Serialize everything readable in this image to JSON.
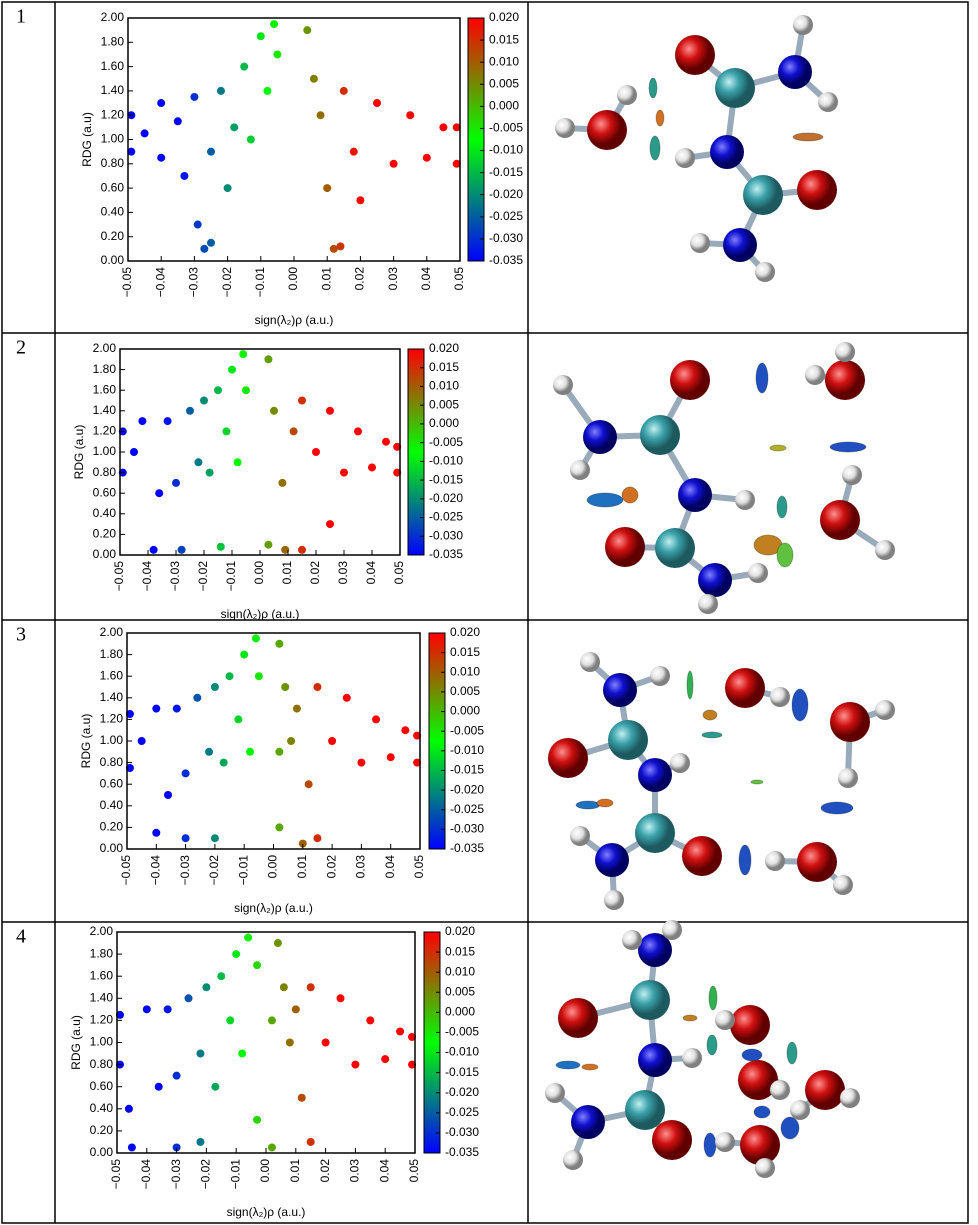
{
  "panels": [
    "1",
    "2",
    "3",
    "4"
  ],
  "chart_data": [
    {
      "type": "scatter",
      "xlabel": "sign(λ₂)ρ (a.u.)",
      "ylabel": "RDG (a.u)",
      "x": [
        -0.049,
        -0.049,
        -0.045,
        -0.04,
        -0.04,
        -0.035,
        -0.033,
        -0.03,
        -0.029,
        -0.027,
        -0.025,
        -0.025,
        -0.022,
        -0.02,
        -0.018,
        -0.015,
        -0.013,
        -0.01,
        -0.008,
        -0.006,
        -0.005,
        0.004,
        0.006,
        0.008,
        0.01,
        0.012,
        0.014,
        0.015,
        0.018,
        0.02,
        0.025,
        0.03,
        0.035,
        0.04,
        0.045,
        0.049,
        0.049
      ],
      "y": [
        1.2,
        0.9,
        1.05,
        1.3,
        0.85,
        1.15,
        0.7,
        1.35,
        0.3,
        0.1,
        0.15,
        0.9,
        1.4,
        0.6,
        1.1,
        1.6,
        1.0,
        1.85,
        1.4,
        1.95,
        1.7,
        1.9,
        1.5,
        1.2,
        0.6,
        0.1,
        0.12,
        1.4,
        0.9,
        0.5,
        1.3,
        0.8,
        1.2,
        0.85,
        1.1,
        0.8,
        1.1
      ],
      "xlim": [
        -0.05,
        0.05
      ],
      "ylim": [
        0,
        2
      ],
      "xticks": [
        {
          "value": -0.05,
          "label": "−0.05"
        },
        {
          "value": -0.04,
          "label": "−0.04"
        },
        {
          "value": -0.03,
          "label": "−0.03"
        },
        {
          "value": -0.02,
          "label": "−0.02"
        },
        {
          "value": -0.01,
          "label": "−0.01"
        },
        {
          "value": 0,
          "label": "0.00"
        },
        0.01,
        0.02,
        0.03,
        0.04,
        0.05
      ],
      "yticks": [
        {
          "value": 0,
          "label": "0.00"
        },
        {
          "value": 0.2,
          "label": "0.20"
        },
        {
          "value": 0.4,
          "label": "0.40"
        },
        {
          "value": 0.6,
          "label": "0.60"
        },
        {
          "value": 0.8,
          "label": "0.80"
        },
        {
          "value": 1,
          "label": "1.00"
        },
        {
          "value": 1.2,
          "label": "1.20"
        },
        {
          "value": 1.4,
          "label": "1.40"
        },
        {
          "value": 1.6,
          "label": "1.60"
        },
        {
          "value": 1.8,
          "label": "1.80"
        },
        {
          "value": 2,
          "label": "2.00"
        }
      ],
      "colorbar": {
        "lim": [
          -0.035,
          0.02
        ],
        "colors": [
          "#0000ff",
          "#00ff00",
          "#ff0000"
        ],
        "ticks": [
          {
            "value": 0.02,
            "label": "0.020"
          },
          0.015,
          {
            "value": 0.01,
            "label": "0.010"
          },
          0.005,
          {
            "value": 0,
            "label": "0.000"
          },
          -0.005,
          {
            "value": -0.01,
            "label": "-0.010"
          },
          -0.015,
          {
            "value": -0.02,
            "label": "-0.020"
          },
          -0.025,
          {
            "value": -0.03,
            "label": "-0.030"
          },
          -0.035
        ]
      }
    },
    {
      "type": "scatter",
      "xlabel": "sign(λ₂)ρ (a.u.)",
      "ylabel": "RDG (a.u)",
      "x": [
        -0.049,
        -0.049,
        -0.045,
        -0.042,
        -0.038,
        -0.036,
        -0.033,
        -0.03,
        -0.028,
        -0.025,
        -0.022,
        -0.02,
        -0.018,
        -0.015,
        -0.014,
        -0.012,
        -0.01,
        -0.008,
        -0.006,
        -0.005,
        0.003,
        0.003,
        0.005,
        0.008,
        0.009,
        0.012,
        0.015,
        0.015,
        0.02,
        0.025,
        0.025,
        0.03,
        0.035,
        0.04,
        0.045,
        0.049,
        0.049
      ],
      "y": [
        1.2,
        0.8,
        1.0,
        1.3,
        0.05,
        0.6,
        1.3,
        0.7,
        0.05,
        1.4,
        0.9,
        1.5,
        0.8,
        1.6,
        0.08,
        1.2,
        1.8,
        0.9,
        1.95,
        1.6,
        0.1,
        1.9,
        1.4,
        0.7,
        0.05,
        1.2,
        0.05,
        1.5,
        1.0,
        0.3,
        1.4,
        0.8,
        1.2,
        0.85,
        1.1,
        0.8,
        1.05
      ],
      "xlim": [
        -0.05,
        0.05
      ],
      "ylim": [
        0,
        2
      ],
      "xticks": [
        {
          "value": -0.05,
          "label": "−0.05"
        },
        {
          "value": -0.04,
          "label": "−0.04"
        },
        {
          "value": -0.03,
          "label": "−0.03"
        },
        {
          "value": -0.02,
          "label": "−0.02"
        },
        {
          "value": -0.01,
          "label": "−0.01"
        },
        {
          "value": 0,
          "label": "0.00"
        },
        0.01,
        0.02,
        0.03,
        0.04,
        0.05
      ],
      "yticks": [
        {
          "value": 0,
          "label": "0.00"
        },
        {
          "value": 0.2,
          "label": "0.20"
        },
        {
          "value": 0.4,
          "label": "0.40"
        },
        {
          "value": 0.6,
          "label": "0.60"
        },
        {
          "value": 0.8,
          "label": "0.80"
        },
        {
          "value": 1,
          "label": "1.00"
        },
        {
          "value": 1.2,
          "label": "1.20"
        },
        {
          "value": 1.4,
          "label": "1.40"
        },
        {
          "value": 1.6,
          "label": "1.60"
        },
        {
          "value": 1.8,
          "label": "1.80"
        },
        {
          "value": 2,
          "label": "2.00"
        }
      ],
      "colorbar": {
        "lim": [
          -0.035,
          0.02
        ],
        "colors": [
          "#0000ff",
          "#00ff00",
          "#ff0000"
        ],
        "ticks": [
          {
            "value": 0.02,
            "label": "0.020"
          },
          0.015,
          {
            "value": 0.01,
            "label": "0.010"
          },
          0.005,
          {
            "value": 0,
            "label": "0.000"
          },
          -0.005,
          {
            "value": -0.01,
            "label": "-0.010"
          },
          -0.015,
          {
            "value": -0.02,
            "label": "-0.020"
          },
          -0.025,
          {
            "value": -0.03,
            "label": "-0.030"
          },
          -0.035
        ]
      }
    },
    {
      "type": "scatter",
      "xlabel": "sign(λ₂)ρ (a.u.)",
      "ylabel": "RDG (a.u)",
      "x": [
        -0.049,
        -0.049,
        -0.045,
        -0.04,
        -0.04,
        -0.036,
        -0.033,
        -0.03,
        -0.03,
        -0.026,
        -0.022,
        -0.02,
        -0.02,
        -0.017,
        -0.015,
        -0.012,
        -0.01,
        -0.008,
        -0.006,
        -0.005,
        0.002,
        0.002,
        0.002,
        0.004,
        0.006,
        0.008,
        0.01,
        0.012,
        0.015,
        0.015,
        0.02,
        0.025,
        0.03,
        0.035,
        0.04,
        0.045,
        0.049,
        0.049
      ],
      "y": [
        1.25,
        0.75,
        1.0,
        1.3,
        0.15,
        0.5,
        1.3,
        0.7,
        0.1,
        1.4,
        0.9,
        1.5,
        0.1,
        0.8,
        1.6,
        1.2,
        1.8,
        0.9,
        1.95,
        1.6,
        0.2,
        0.9,
        1.9,
        1.5,
        1.0,
        1.3,
        0.05,
        0.6,
        0.1,
        1.5,
        1.0,
        1.4,
        0.8,
        1.2,
        0.85,
        1.1,
        0.8,
        1.05
      ],
      "xlim": [
        -0.05,
        0.05
      ],
      "ylim": [
        0,
        2
      ],
      "xticks": [
        {
          "value": -0.05,
          "label": "−0.05"
        },
        {
          "value": -0.04,
          "label": "−0.04"
        },
        {
          "value": -0.03,
          "label": "−0.03"
        },
        {
          "value": -0.02,
          "label": "−0.02"
        },
        {
          "value": -0.01,
          "label": "−0.01"
        },
        {
          "value": 0,
          "label": "0.00"
        },
        0.01,
        0.02,
        0.03,
        0.04,
        0.05
      ],
      "yticks": [
        {
          "value": 0,
          "label": "0.00"
        },
        {
          "value": 0.2,
          "label": "0.20"
        },
        {
          "value": 0.4,
          "label": "0.40"
        },
        {
          "value": 0.6,
          "label": "0.60"
        },
        {
          "value": 0.8,
          "label": "0.80"
        },
        {
          "value": 1,
          "label": "1.00"
        },
        {
          "value": 1.2,
          "label": "1.20"
        },
        {
          "value": 1.4,
          "label": "1.40"
        },
        {
          "value": 1.6,
          "label": "1.60"
        },
        {
          "value": 1.8,
          "label": "1.80"
        },
        {
          "value": 2,
          "label": "2.00"
        }
      ],
      "colorbar": {
        "lim": [
          -0.035,
          0.02
        ],
        "colors": [
          "#0000ff",
          "#00ff00",
          "#ff0000"
        ],
        "ticks": [
          {
            "value": 0.02,
            "label": "0.020"
          },
          0.015,
          {
            "value": 0.01,
            "label": "0.010"
          },
          0.005,
          {
            "value": 0,
            "label": "0.000"
          },
          -0.005,
          {
            "value": -0.01,
            "label": "-0.010"
          },
          -0.015,
          {
            "value": -0.02,
            "label": "-0.020"
          },
          -0.025,
          {
            "value": -0.03,
            "label": "-0.030"
          },
          -0.035
        ]
      }
    },
    {
      "type": "scatter",
      "xlabel": "sign(λ₂)ρ (a.u.)",
      "ylabel": "RDG (a.u)",
      "x": [
        -0.049,
        -0.049,
        -0.046,
        -0.045,
        -0.04,
        -0.036,
        -0.033,
        -0.03,
        -0.03,
        -0.026,
        -0.022,
        -0.022,
        -0.02,
        -0.017,
        -0.015,
        -0.012,
        -0.01,
        -0.008,
        -0.006,
        -0.003,
        -0.003,
        0.002,
        0.002,
        0.004,
        0.006,
        0.008,
        0.01,
        0.012,
        0.015,
        0.015,
        0.02,
        0.025,
        0.03,
        0.035,
        0.04,
        0.045,
        0.049,
        0.049
      ],
      "y": [
        1.25,
        0.8,
        0.4,
        0.05,
        1.3,
        0.6,
        1.3,
        0.7,
        0.05,
        1.4,
        0.9,
        0.1,
        1.5,
        0.6,
        1.6,
        1.2,
        1.8,
        0.9,
        1.95,
        0.3,
        1.7,
        0.05,
        1.2,
        1.9,
        1.5,
        1.0,
        1.3,
        0.5,
        0.1,
        1.5,
        1.0,
        1.4,
        0.8,
        1.2,
        0.85,
        1.1,
        0.8,
        1.05
      ],
      "xlim": [
        -0.05,
        0.05
      ],
      "ylim": [
        0,
        2
      ],
      "xticks": [
        {
          "value": -0.05,
          "label": "−0.05"
        },
        {
          "value": -0.04,
          "label": "−0.04"
        },
        {
          "value": -0.03,
          "label": "−0.03"
        },
        {
          "value": -0.02,
          "label": "−0.02"
        },
        {
          "value": -0.01,
          "label": "−0.01"
        },
        {
          "value": 0,
          "label": "0.00"
        },
        0.01,
        0.02,
        0.03,
        0.04,
        0.05
      ],
      "yticks": [
        {
          "value": 0,
          "label": "0.00"
        },
        {
          "value": 0.2,
          "label": "0.20"
        },
        {
          "value": 0.4,
          "label": "0.40"
        },
        {
          "value": 0.6,
          "label": "0.60"
        },
        {
          "value": 0.8,
          "label": "0.80"
        },
        {
          "value": 1,
          "label": "1.00"
        },
        {
          "value": 1.2,
          "label": "1.20"
        },
        {
          "value": 1.4,
          "label": "1.40"
        },
        {
          "value": 1.6,
          "label": "1.60"
        },
        {
          "value": 1.8,
          "label": "1.80"
        },
        {
          "value": 2,
          "label": "2.00"
        }
      ],
      "colorbar": {
        "lim": [
          -0.035,
          0.02
        ],
        "colors": [
          "#0000ff",
          "#00ff00",
          "#ff0000"
        ],
        "ticks": [
          {
            "value": 0.02,
            "label": "0.020"
          },
          0.015,
          {
            "value": 0.01,
            "label": "0.010"
          },
          0.005,
          {
            "value": 0,
            "label": "0.000"
          },
          -0.005,
          {
            "value": -0.01,
            "label": "-0.010"
          },
          -0.015,
          {
            "value": -0.02,
            "label": "-0.020"
          },
          -0.025,
          {
            "value": -0.03,
            "label": "-0.030"
          },
          -0.035
        ]
      }
    }
  ]
}
